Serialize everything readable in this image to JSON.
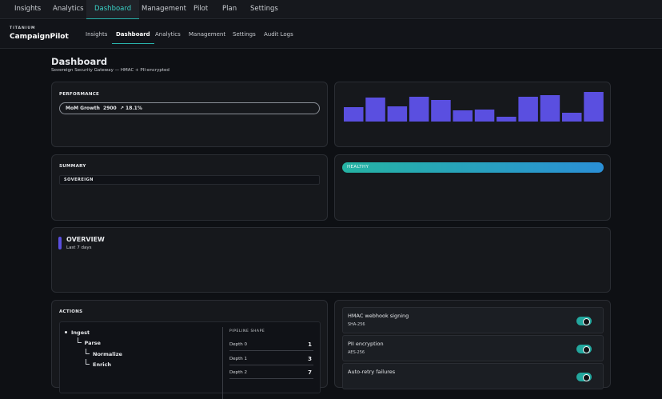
{
  "top_nav": {
    "items": [
      "Insights",
      "Analytics",
      "Dashboard",
      "Management",
      "Pilot",
      "Plan",
      "Settings"
    ],
    "active_index": 2
  },
  "brand": {
    "kicker": "TITANIUM",
    "name": "CampaignPilot"
  },
  "sub_nav": {
    "items": [
      "Insights",
      "Dashboard",
      "Analytics",
      "Management",
      "Settings",
      "Audit Logs"
    ],
    "active_index": 1
  },
  "page": {
    "title": "Dashboard",
    "subtitle": "Sovereign Security Gateway — HMAC + PII-encrypted"
  },
  "performance": {
    "heading": "PERFORMANCE",
    "metric_label": "MoM Growth",
    "metric_value": "2900",
    "metric_change": "↗ 18.1%",
    "sparkline": {
      "type": "bar",
      "color": "#5a4fe0",
      "values": [
        18,
        30,
        19,
        31,
        27,
        14,
        15,
        6,
        31,
        33,
        11,
        37
      ]
    }
  },
  "summary": {
    "heading": "SUMMARY",
    "field": "SOVEREIGN"
  },
  "health": {
    "label": "HEALTHY"
  },
  "overview": {
    "title": "OVERVIEW",
    "subtitle": "Last 7 days"
  },
  "actions": {
    "heading": "ACTIONS",
    "tree": [
      {
        "label": "Ingest",
        "depth": 0
      },
      {
        "label": "Parse",
        "depth": 1
      },
      {
        "label": "Normalize",
        "depth": 2
      },
      {
        "label": "Enrich",
        "depth": 2
      }
    ],
    "pipeline": {
      "heading": "PIPELINE SHAPE",
      "rows": [
        [
          "Depth 0",
          "1"
        ],
        [
          "Depth 1",
          "3"
        ],
        [
          "Depth 2",
          "7"
        ]
      ]
    }
  },
  "toggles": [
    {
      "title": "HMAC webhook signing",
      "detail": "SHA-256",
      "on": true
    },
    {
      "title": "PII encryption",
      "detail": "AES-256",
      "on": true
    },
    {
      "title": "Auto-retry failures",
      "detail": "",
      "on": true
    }
  ]
}
